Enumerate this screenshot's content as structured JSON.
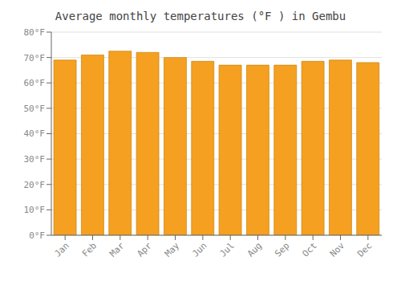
{
  "chart_data": {
    "type": "bar",
    "title": "Average monthly temperatures (°F ) in Gembu",
    "categories": [
      "Jan",
      "Feb",
      "Mar",
      "Apr",
      "May",
      "Jun",
      "Jul",
      "Aug",
      "Sep",
      "Oct",
      "Nov",
      "Dec"
    ],
    "values": [
      69,
      71,
      72.5,
      72,
      70,
      68.5,
      67,
      67,
      67,
      68.5,
      69,
      68
    ],
    "color": "#F5A020",
    "ylim": [
      0,
      80
    ],
    "yticks": [
      {
        "value": 0,
        "label": "0°F"
      },
      {
        "value": 10,
        "label": "10°F"
      },
      {
        "value": 20,
        "label": "20°F"
      },
      {
        "value": 30,
        "label": "30°F"
      },
      {
        "value": 40,
        "label": "40°F"
      },
      {
        "value": 50,
        "label": "50°F"
      },
      {
        "value": 60,
        "label": "60°F"
      },
      {
        "value": 70,
        "label": "70°F"
      },
      {
        "value": 80,
        "label": "80°F"
      }
    ],
    "grid": true
  }
}
